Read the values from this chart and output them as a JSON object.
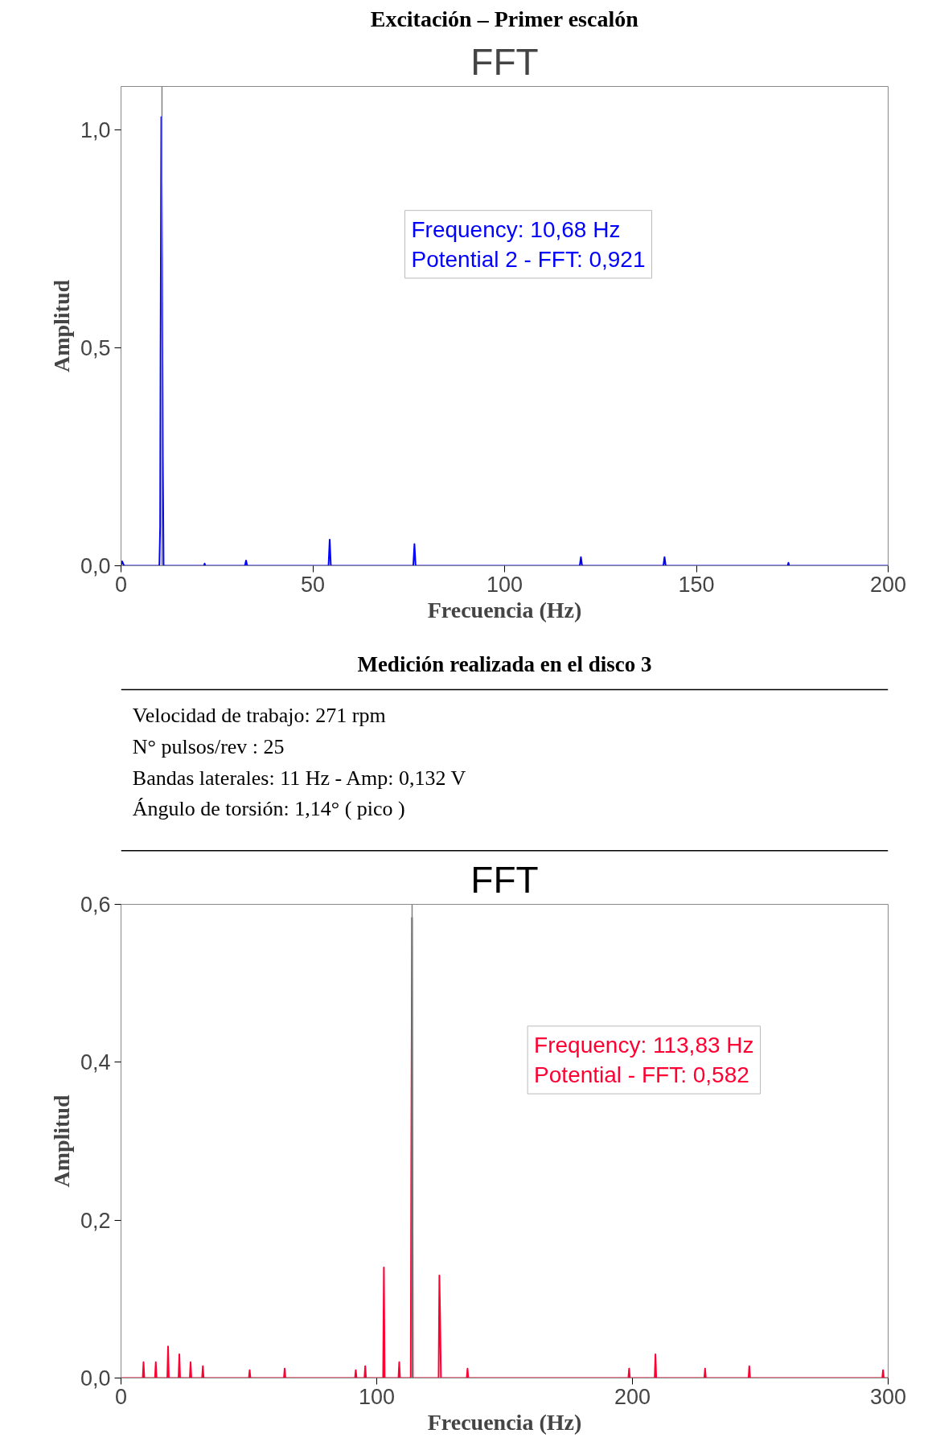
{
  "chart_data": [
    {
      "type": "line",
      "title": "Excitación – Primer escalón",
      "subtitle": "FFT",
      "xlabel": "Frecuencia (Hz)",
      "ylabel": "Amplitud",
      "x": [
        0,
        0.3,
        0.8,
        10.0,
        10.2,
        10.3,
        10.5,
        10.7,
        10.9,
        11.1,
        21.6,
        21.8,
        22.0,
        32.3,
        32.6,
        32.9,
        54.1,
        54.4,
        54.7,
        76.2,
        76.5,
        76.8,
        119.6,
        119.9,
        120.2,
        141.4,
        141.7,
        142.0,
        173.8,
        174.0,
        174.2,
        200
      ],
      "series": [
        {
          "color": "#0000ff",
          "values": [
            0,
            0.01,
            0,
            0,
            0.09,
            0.47,
            1.03,
            0.71,
            0.25,
            0,
            0,
            0.005,
            0,
            0,
            0.012,
            0,
            0,
            0.06,
            0,
            0,
            0.05,
            0,
            0,
            0.02,
            0,
            0,
            0.02,
            0,
            0,
            0.007,
            0,
            0
          ]
        }
      ],
      "xlim": [
        0,
        200
      ],
      "xticks": [
        0,
        50,
        100,
        150,
        200
      ],
      "ylim": [
        0,
        1.1
      ],
      "yticks": [
        {
          "value": 0,
          "label": "0,0"
        },
        {
          "value": 0.5,
          "label": "0,5"
        },
        {
          "value": 1.0,
          "label": "1,0"
        }
      ],
      "ref_lines": [
        {
          "axis": "x",
          "value": 10.68,
          "color": "#808080"
        }
      ],
      "annotations": [
        "Frequency: 10,68 Hz",
        "Potential 2 - FFT: 0,921"
      ],
      "grid": false,
      "marker": "none",
      "line_style": "solid"
    },
    {
      "type": "other",
      "title": "Medición realizada en el disco 3",
      "annotations": [
        "Velocidad de trabajo: 271 rpm",
        "N° pulsos/rev : 25",
        "Bandas laterales: 11 Hz - Amp:  0,132 V",
        "Ángulo de torsión: 1,14° ( pico )"
      ]
    },
    {
      "type": "line",
      "title": "FFT",
      "xlabel": "Frecuencia (Hz)",
      "ylabel": "Amplitud",
      "x": [
        0,
        8.5,
        8.8,
        9.1,
        13.3,
        13.6,
        13.9,
        18.1,
        18.4,
        18.7,
        22.5,
        22.8,
        23.1,
        26.9,
        27.2,
        27.5,
        31.7,
        32.0,
        32.3,
        50.0,
        50.3,
        50.6,
        63.7,
        64.0,
        64.3,
        91.5,
        91.8,
        92.1,
        95.2,
        95.5,
        95.8,
        102.5,
        102.8,
        103.1,
        108.5,
        108.8,
        109.1,
        113.3,
        113.5,
        113.8,
        114.1,
        124.2,
        124.5,
        124.8,
        125.1,
        135.2,
        135.5,
        135.8,
        198.4,
        198.7,
        199.0,
        208.7,
        209.0,
        209.3,
        228.1,
        228.4,
        228.7,
        245.4,
        245.7,
        246.0,
        297.7,
        298.0,
        298.3,
        300
      ],
      "series": [
        {
          "color": "#ff0033",
          "values": [
            0,
            0,
            0.02,
            0,
            0,
            0.02,
            0,
            0,
            0.04,
            0,
            0,
            0.03,
            0,
            0,
            0.02,
            0,
            0,
            0.015,
            0,
            0,
            0.01,
            0,
            0,
            0.012,
            0,
            0,
            0.01,
            0,
            0,
            0.015,
            0,
            0,
            0.14,
            0,
            0,
            0.02,
            0,
            0,
            0.26,
            0.583,
            0,
            0,
            0.13,
            0.075,
            0,
            0,
            0.012,
            0,
            0,
            0.012,
            0,
            0,
            0.03,
            0,
            0,
            0.012,
            0,
            0,
            0.015,
            0,
            0,
            0.01,
            0,
            0
          ]
        }
      ],
      "xlim": [
        0,
        300
      ],
      "xticks": [
        0,
        100,
        200,
        300
      ],
      "ylim": [
        0,
        0.6
      ],
      "yticks": [
        {
          "value": 0,
          "label": "0,0"
        },
        {
          "value": 0.2,
          "label": "0,2"
        },
        {
          "value": 0.4,
          "label": "0,4"
        },
        {
          "value": 0.6,
          "label": "0,6"
        }
      ],
      "ref_lines": [
        {
          "axis": "x",
          "value": 113.83,
          "color": "#808080"
        }
      ],
      "annotations": [
        "Frequency: 113,83 Hz",
        "Potential - FFT: 0,582"
      ],
      "grid": false,
      "marker": "none",
      "line_style": "solid"
    }
  ]
}
